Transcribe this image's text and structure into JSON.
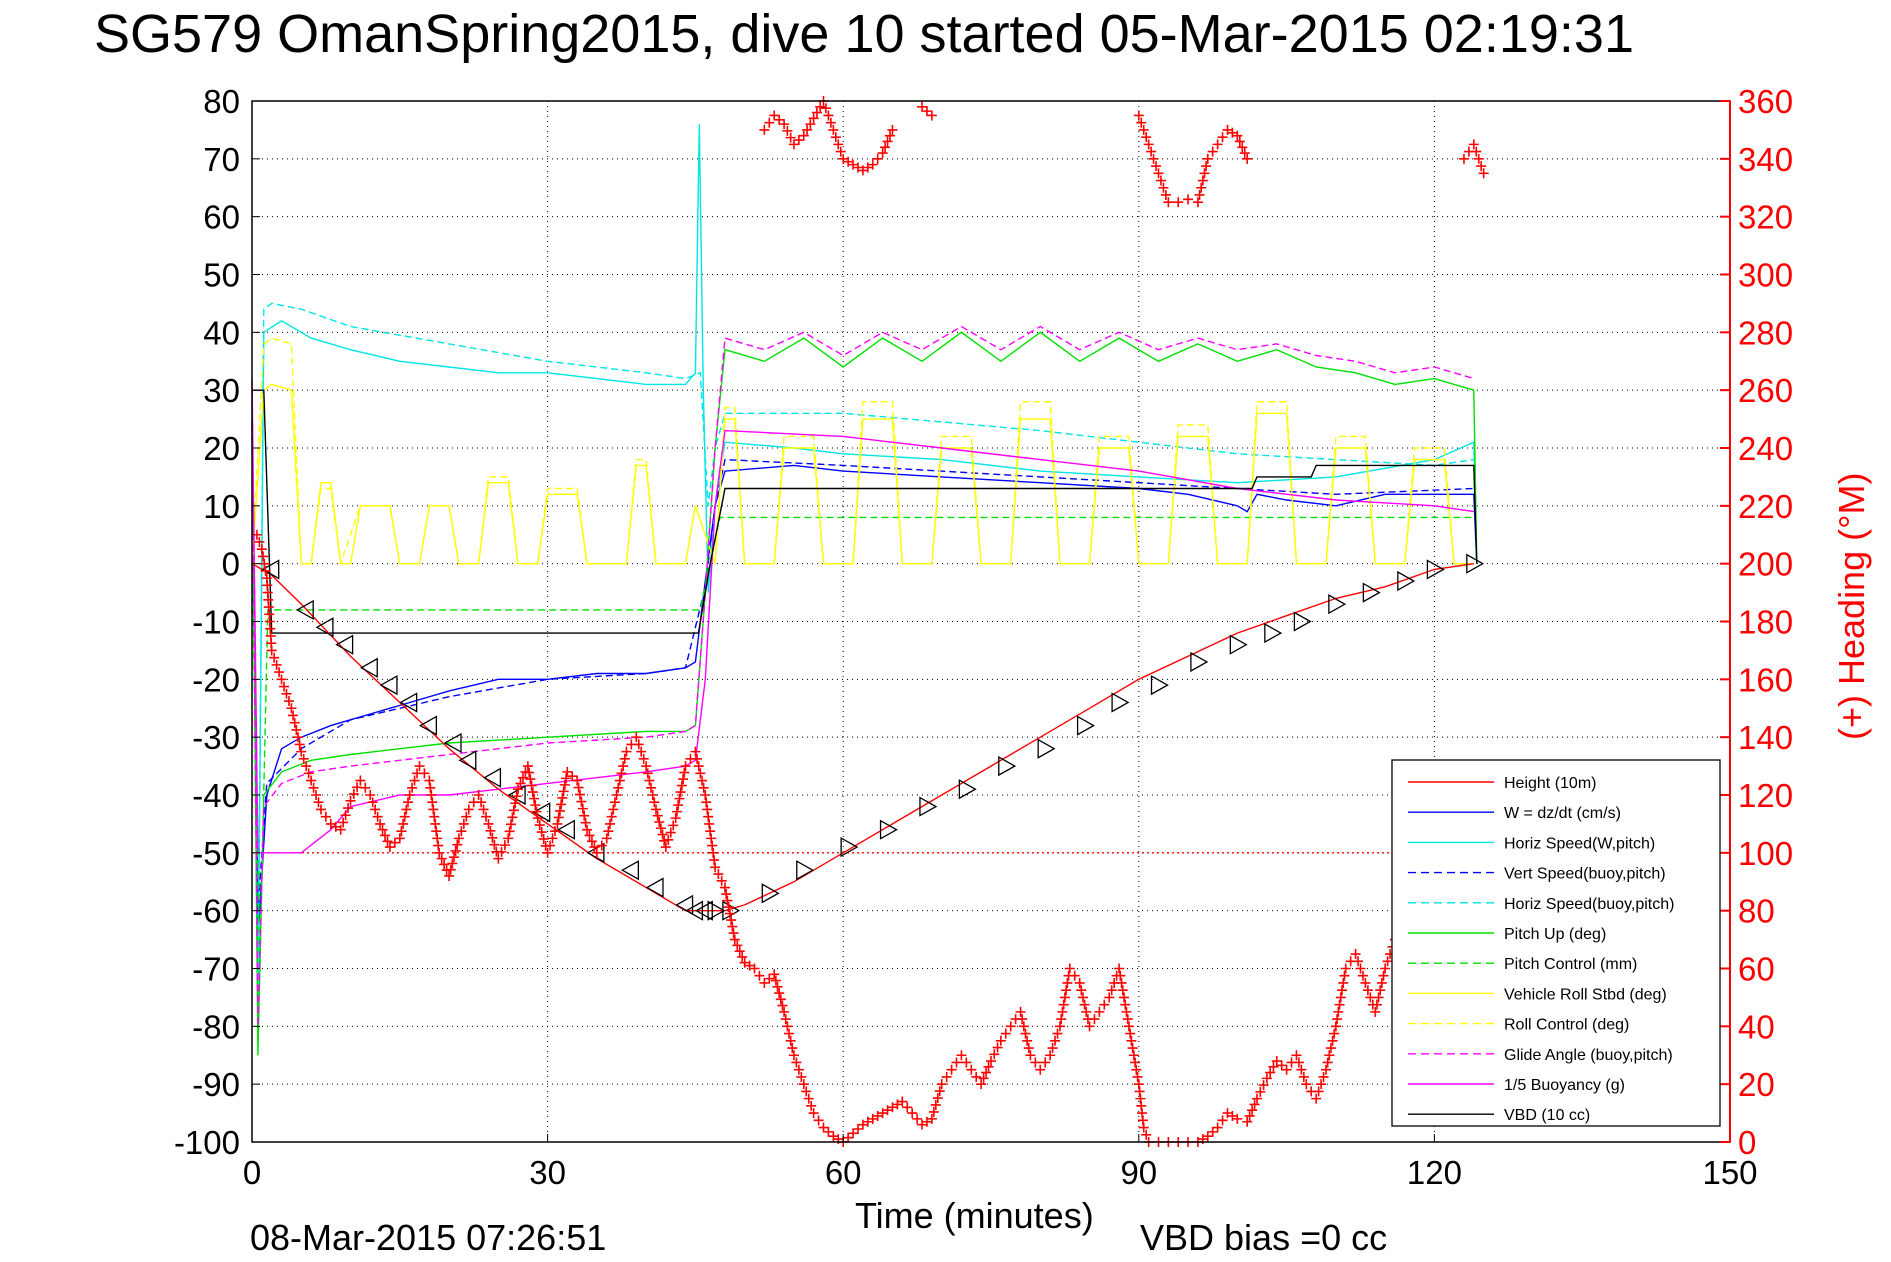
{
  "chart_data": {
    "type": "line",
    "title": "SG579 OmanSpring2015, dive 10 started 05-Mar-2015 02:19:31",
    "xlabel": "Time (minutes)",
    "ylabel_right": "(+) Heading (°M)",
    "xlim": [
      0,
      150
    ],
    "ylim_left": [
      -100,
      80
    ],
    "ylim_right": [
      0,
      360
    ],
    "x_ticks": [
      "0",
      "30",
      "60",
      "90",
      "120",
      "150"
    ],
    "y_ticks_left": [
      "80",
      "70",
      "60",
      "50",
      "40",
      "30",
      "20",
      "10",
      "0",
      "-10",
      "-20",
      "-30",
      "-40",
      "-50",
      "-60",
      "-70",
      "-80",
      "-90",
      "-100"
    ],
    "y_ticks_right": [
      "360",
      "340",
      "320",
      "300",
      "280",
      "260",
      "240",
      "220",
      "200",
      "180",
      "160",
      "140",
      "120",
      "100",
      "80",
      "60",
      "40",
      "20",
      "0"
    ],
    "grid": true,
    "legend_position": "bottom-right",
    "footer_left": "08-Mar-2015 07:26:51",
    "footer_right": "VBD bias =0 cc",
    "series": [
      {
        "name": "Height (10m)",
        "color": "#ff0000",
        "dash": "solid",
        "x": [
          0,
          0.8,
          124
        ],
        "y": [
          -50,
          -50,
          -50
        ]
      },
      {
        "name": "W = dz/dt (cm/s)",
        "color": "#0000ff",
        "dash": "solid",
        "x": [
          0,
          0.6,
          1.5,
          3,
          5,
          8,
          12,
          16,
          20,
          25,
          30,
          35,
          40,
          44,
          45,
          46,
          47,
          48,
          55,
          60,
          70,
          80,
          90,
          95,
          100,
          101,
          102,
          105,
          110,
          115,
          120,
          124,
          124.3
        ],
        "y": [
          25,
          -65,
          -40,
          -32,
          -30,
          -28,
          -26,
          -24,
          -22,
          -20,
          -20,
          -19,
          -19,
          -18,
          -17,
          -3,
          10,
          16,
          17,
          16,
          15,
          14,
          13,
          12,
          10,
          9,
          12,
          11,
          10,
          12,
          12,
          12,
          0
        ]
      },
      {
        "name": "Horiz Speed(W,pitch)",
        "color": "#00e5e5",
        "dash": "solid",
        "x": [
          0,
          0.6,
          1.2,
          3,
          6,
          10,
          15,
          20,
          25,
          30,
          35,
          40,
          44,
          45,
          45.4,
          45.8,
          46.3,
          47,
          48,
          55,
          60,
          70,
          80,
          90,
          100,
          110,
          120,
          124,
          124.3
        ],
        "y": [
          22,
          -78,
          40,
          42,
          39,
          37,
          35,
          34,
          33,
          33,
          32,
          31,
          31,
          33,
          76,
          30,
          -5,
          10,
          21,
          20,
          19,
          18,
          16,
          15,
          14,
          15,
          18,
          21,
          0
        ]
      },
      {
        "name": "Vert Speed(buoy,pitch)",
        "color": "#0000ff",
        "dash": "dash",
        "x": [
          0,
          0.6,
          1.5,
          5,
          10,
          20,
          30,
          40,
          44,
          46,
          47,
          48,
          60,
          80,
          100,
          110,
          124
        ],
        "y": [
          24,
          -60,
          -38,
          -32,
          -27,
          -23,
          -20,
          -19,
          -18,
          -4,
          10,
          18,
          17,
          15,
          13,
          12,
          13
        ]
      },
      {
        "name": "Horiz Speed(buoy,pitch)",
        "color": "#00e5e5",
        "dash": "dash",
        "x": [
          0,
          0.6,
          1.2,
          2,
          5,
          10,
          20,
          30,
          40,
          44,
          45.5,
          46.3,
          47,
          48,
          60,
          80,
          100,
          120,
          124
        ],
        "y": [
          24,
          -75,
          44,
          45,
          44,
          41,
          38,
          35,
          33,
          32,
          33,
          10,
          20,
          26,
          26,
          23,
          19,
          17,
          18
        ]
      },
      {
        "name": "Pitch Up (deg)",
        "color": "#00e000",
        "dash": "solid",
        "x": [
          0,
          0.6,
          1.2,
          3,
          6,
          10,
          15,
          20,
          30,
          40,
          44,
          45,
          46,
          47,
          48,
          52,
          56,
          60,
          64,
          68,
          72,
          76,
          80,
          84,
          88,
          92,
          96,
          100,
          104,
          108,
          112,
          116,
          120,
          124,
          124.3
        ],
        "y": [
          28,
          -85,
          -40,
          -36,
          -34,
          -33,
          -32,
          -31,
          -30,
          -29,
          -29,
          -28,
          -5,
          20,
          37,
          35,
          39,
          34,
          39,
          35,
          40,
          35,
          40,
          35,
          39,
          35,
          38,
          35,
          37,
          34,
          33,
          31,
          32,
          30,
          0
        ]
      },
      {
        "name": "Pitch Control (mm)",
        "color": "#00e000",
        "dash": "dash",
        "x": [
          0,
          0.8,
          1.6,
          45.5,
          47.5,
          60,
          90,
          124
        ],
        "y": [
          0,
          -70,
          -8,
          -8,
          8,
          8,
          8,
          8
        ]
      },
      {
        "name": "Vehicle Roll Stbd (deg)",
        "color": "#ffff00",
        "dash": "solid",
        "x": [
          0,
          1.2,
          2,
          4,
          5,
          6,
          7,
          8,
          9,
          10,
          11,
          14,
          15,
          17,
          18,
          20,
          21,
          23,
          24,
          26,
          27,
          29,
          30,
          33,
          34,
          38,
          39,
          40,
          41,
          44,
          45,
          47,
          48,
          49,
          50,
          53,
          54,
          57,
          58,
          61,
          62,
          65,
          66,
          69,
          70,
          73,
          74,
          77,
          78,
          81,
          82,
          85,
          86,
          89,
          90,
          93,
          94,
          97,
          98,
          101,
          102,
          105,
          106,
          109,
          110,
          113,
          114,
          117,
          118,
          121,
          122,
          124
        ],
        "y": [
          0,
          30,
          31,
          30,
          0,
          0,
          14,
          14,
          0,
          0,
          10,
          10,
          0,
          0,
          10,
          10,
          0,
          0,
          14,
          14,
          0,
          0,
          12,
          12,
          0,
          0,
          17,
          17,
          0,
          0,
          10,
          0,
          25,
          25,
          0,
          0,
          20,
          20,
          0,
          0,
          25,
          25,
          0,
          0,
          20,
          20,
          0,
          0,
          25,
          25,
          0,
          0,
          20,
          20,
          0,
          0,
          22,
          22,
          0,
          0,
          26,
          26,
          0,
          0,
          20,
          20,
          0,
          0,
          18,
          18,
          0,
          0
        ]
      },
      {
        "name": "Roll Control (deg)",
        "color": "#ffff00",
        "dash": "dash",
        "x": [
          0,
          1.2,
          2,
          4,
          5,
          6,
          7,
          8,
          9,
          11,
          14,
          15,
          17,
          18,
          20,
          21,
          23,
          24,
          26,
          27,
          29,
          30,
          33,
          34,
          38,
          39,
          40,
          41,
          44,
          45,
          47,
          48,
          49,
          50,
          53,
          54,
          57,
          58,
          61,
          62,
          65,
          66,
          69,
          70,
          73,
          74,
          77,
          78,
          81,
          82,
          85,
          86,
          89,
          90,
          93,
          94,
          97,
          98,
          101,
          102,
          105,
          106,
          109,
          110,
          113,
          114,
          117,
          118,
          121,
          122,
          124
        ],
        "y": [
          0,
          38,
          39,
          38,
          0,
          0,
          13,
          13,
          0,
          10,
          10,
          0,
          0,
          10,
          10,
          0,
          0,
          15,
          15,
          0,
          0,
          13,
          13,
          0,
          0,
          18,
          18,
          0,
          0,
          10,
          0,
          27,
          27,
          0,
          0,
          22,
          22,
          0,
          0,
          28,
          28,
          0,
          0,
          22,
          22,
          0,
          0,
          28,
          28,
          0,
          0,
          22,
          22,
          0,
          0,
          24,
          24,
          0,
          0,
          28,
          28,
          0,
          0,
          22,
          22,
          0,
          0,
          20,
          20,
          0,
          0
        ]
      },
      {
        "name": "Glide Angle (buoy,pitch)",
        "color": "#ff00ff",
        "dash": "dash",
        "x": [
          0,
          0.6,
          1.2,
          3,
          6,
          10,
          15,
          20,
          30,
          40,
          44,
          45,
          46,
          47,
          48,
          52,
          56,
          60,
          64,
          68,
          72,
          76,
          80,
          84,
          88,
          92,
          96,
          100,
          104,
          108,
          112,
          116,
          120,
          124
        ],
        "y": [
          30,
          -80,
          -42,
          -38,
          -36,
          -35,
          -34,
          -33,
          -31,
          -30,
          -29,
          -28,
          -5,
          20,
          39,
          37,
          40,
          36,
          40,
          37,
          41,
          37,
          41,
          37,
          40,
          37,
          39,
          37,
          38,
          36,
          35,
          33,
          34,
          32
        ]
      },
      {
        "name": "1/5 Buoyancy (g)",
        "color": "#ff00ff",
        "dash": "solid",
        "x": [
          0,
          0.6,
          1.2,
          5,
          8,
          10,
          15,
          20,
          30,
          40,
          44,
          45,
          46,
          47,
          48,
          60,
          70,
          80,
          90,
          100,
          110,
          120,
          124
        ],
        "y": [
          32,
          -50,
          -50,
          -50,
          -46,
          -42,
          -40,
          -40,
          -38,
          -36,
          -35,
          -34,
          -20,
          10,
          23,
          22,
          20,
          18,
          16,
          13,
          11,
          10,
          9
        ]
      },
      {
        "name": "VBD (10 cc)",
        "color": "#000000",
        "dash": "solid",
        "x": [
          0,
          1.2,
          2,
          44.8,
          45.3,
          46.5,
          48,
          60,
          90,
          101.5,
          102,
          107.5,
          108,
          124,
          124.3
        ],
        "y": [
          30,
          30,
          -12,
          -12,
          -12,
          0,
          13,
          13,
          13,
          13,
          15,
          15,
          17,
          17,
          0
        ]
      }
    ],
    "depth_profile": {
      "name": "Height (10m)",
      "color": "#ff0000",
      "x": [
        0,
        1,
        2,
        5,
        10,
        15,
        20,
        25,
        30,
        35,
        40,
        44,
        45,
        46,
        47,
        48,
        50,
        55,
        60,
        65,
        70,
        75,
        80,
        85,
        90,
        95,
        100,
        105,
        110,
        115,
        120,
        124
      ],
      "y": [
        0,
        -1,
        -2,
        -7,
        -16,
        -24,
        -32,
        -39,
        -45,
        -51,
        -56,
        -60,
        -60,
        -60,
        -60,
        -60,
        -59,
        -55,
        -50,
        -45,
        -40,
        -35,
        -30,
        -25,
        -20,
        -16,
        -12,
        -9,
        -6,
        -4,
        -1,
        0
      ]
    },
    "depth_markers": {
      "x": [
        2,
        5.5,
        7.5,
        9.5,
        12,
        14,
        16,
        18,
        20.5,
        22,
        24.5,
        27,
        29.5,
        32,
        35,
        38.5,
        41,
        44,
        45,
        46,
        47,
        48.5,
        52.5,
        56,
        60.5,
        64.5,
        68.5,
        72.5,
        76.5,
        80.5,
        84.5,
        88,
        92,
        96,
        100,
        103.5,
        106.5,
        110,
        113.5,
        117,
        120,
        124
      ],
      "y": [
        -1,
        -8,
        -11,
        -14,
        -18,
        -21,
        -24,
        -28,
        -31,
        -34,
        -37,
        -40,
        -43,
        -46,
        -50,
        -53,
        -56,
        -59,
        -60,
        -60,
        -60,
        -60,
        -57,
        -53,
        -49,
        -46,
        -42,
        -39,
        -35,
        -32,
        -28,
        -24,
        -21,
        -17,
        -14,
        -12,
        -10,
        -7,
        -5,
        -3,
        -1,
        0
      ]
    },
    "heading": {
      "name": "(+) Heading (°M)",
      "color": "#ff0000",
      "x": [
        0.5,
        1,
        1.5,
        2,
        3,
        4,
        5,
        6,
        7,
        8,
        9,
        10,
        11,
        12,
        13,
        14,
        15,
        16,
        17,
        18,
        19,
        20,
        21,
        22,
        23,
        24,
        25,
        26,
        27,
        28,
        29,
        30,
        31,
        32,
        33,
        34,
        35,
        36,
        37,
        38,
        39,
        40,
        41,
        42,
        43,
        44,
        45,
        46,
        47,
        48,
        49,
        50,
        51,
        52,
        53,
        54,
        55,
        56,
        57,
        58,
        59,
        60,
        61,
        62,
        63,
        64,
        65,
        66,
        67,
        68,
        69,
        70,
        71,
        72,
        73,
        74,
        75,
        76,
        77,
        78,
        79,
        80,
        81,
        82,
        83,
        84,
        85,
        86,
        87,
        88,
        89,
        90,
        90.5,
        91,
        92,
        93,
        94,
        95,
        96,
        97,
        98,
        99,
        100,
        101,
        102,
        103,
        104,
        105,
        106,
        107,
        108,
        109,
        110,
        111,
        112,
        113,
        114,
        115,
        116,
        117,
        118,
        119,
        120,
        121,
        122,
        123,
        124,
        125
      ],
      "y": [
        210,
        205,
        195,
        170,
        160,
        150,
        135,
        125,
        115,
        110,
        108,
        118,
        125,
        120,
        110,
        102,
        105,
        120,
        130,
        125,
        100,
        92,
        105,
        115,
        120,
        110,
        98,
        105,
        122,
        130,
        112,
        100,
        110,
        128,
        125,
        108,
        100,
        105,
        120,
        135,
        140,
        130,
        115,
        102,
        112,
        130,
        135,
        120,
        95,
        88,
        70,
        62,
        60,
        55,
        58,
        45,
        30,
        20,
        10,
        5,
        2,
        0,
        3,
        6,
        8,
        10,
        12,
        14,
        10,
        6,
        8,
        20,
        25,
        30,
        25,
        20,
        28,
        35,
        40,
        45,
        30,
        25,
        30,
        40,
        60,
        55,
        40,
        45,
        50,
        60,
        40,
        20,
        5,
        0,
        0,
        0,
        0,
        0,
        0,
        2,
        5,
        10,
        8,
        7,
        15,
        22,
        28,
        25,
        30,
        20,
        15,
        25,
        40,
        60,
        65,
        55,
        45,
        60,
        70,
        75,
        80,
        70,
        60,
        50,
        40,
        35,
        30,
        25
      ]
    },
    "heading_wrap": {
      "x": [
        52,
        53,
        54,
        55,
        56,
        58,
        59,
        60,
        61,
        62,
        63,
        64,
        65,
        68,
        69,
        90,
        91,
        92,
        93,
        94,
        95,
        96,
        97,
        98,
        99,
        100,
        101,
        123,
        124,
        125
      ],
      "y": [
        350,
        355,
        352,
        345,
        348,
        360,
        350,
        340,
        338,
        336,
        338,
        342,
        350,
        358,
        355,
        355,
        345,
        335,
        325,
        325,
        326,
        325,
        340,
        345,
        350,
        348,
        340,
        340,
        345,
        335
      ]
    }
  }
}
